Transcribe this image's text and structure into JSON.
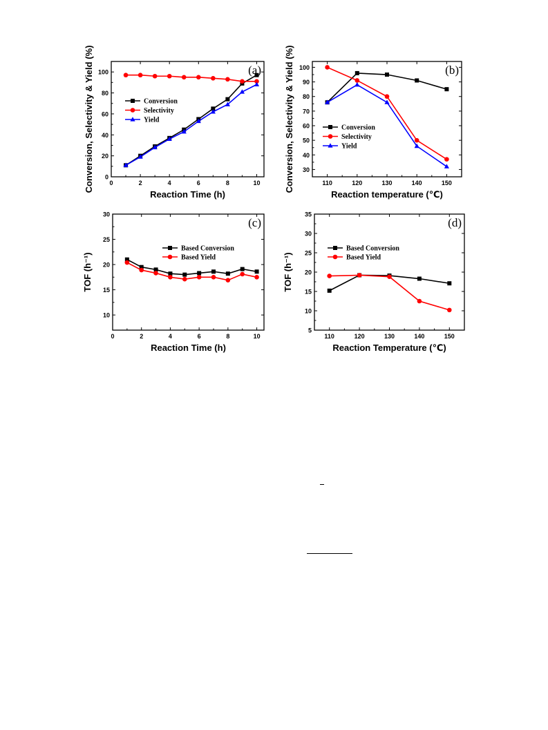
{
  "chart_data": [
    {
      "panel": "(a)",
      "type": "line",
      "xlabel": "Reaction Time (h)",
      "ylabel": "Conversion, Selectivity & Yield (%)",
      "xlim": [
        0,
        10.5
      ],
      "ylim": [
        0,
        110
      ],
      "xticks": [
        0,
        2,
        4,
        6,
        8,
        10
      ],
      "yticks": [
        0,
        20,
        40,
        60,
        80,
        100
      ],
      "legend_position": "middle-left",
      "x": [
        1,
        2,
        3,
        4,
        5,
        6,
        7,
        8,
        9,
        10
      ],
      "series": [
        {
          "name": "Conversion",
          "color": "#000000",
          "marker": "square",
          "values": [
            11,
            20,
            29,
            37,
            45,
            55,
            65,
            74,
            89,
            97
          ]
        },
        {
          "name": "Selectivity",
          "color": "#ff0000",
          "marker": "circle",
          "values": [
            97,
            97,
            96,
            96,
            95,
            95,
            94,
            93,
            91,
            91
          ]
        },
        {
          "name": "Yield",
          "color": "#0000ff",
          "marker": "triangle",
          "values": [
            11,
            19,
            28,
            36,
            43,
            53,
            62,
            69,
            81,
            88
          ]
        }
      ]
    },
    {
      "panel": "(b)",
      "type": "line",
      "xlabel": "Reaction temperature (℃)",
      "ylabel": "Conversion, Selectivity & Yield (%)",
      "xlim": [
        105,
        155
      ],
      "ylim": [
        25,
        104
      ],
      "xticks": [
        110,
        120,
        130,
        140,
        150
      ],
      "yticks": [
        30,
        40,
        50,
        60,
        70,
        80,
        90,
        100
      ],
      "legend_position": "middle-left",
      "x": [
        110,
        120,
        130,
        140,
        150
      ],
      "series": [
        {
          "name": "Conversion",
          "color": "#000000",
          "marker": "square",
          "values": [
            76,
            96,
            95,
            91,
            85
          ]
        },
        {
          "name": "Selectivity",
          "color": "#ff0000",
          "marker": "circle",
          "values": [
            100,
            91,
            80,
            50,
            37
          ]
        },
        {
          "name": "Yield",
          "color": "#0000ff",
          "marker": "triangle",
          "values": [
            76,
            88,
            76,
            46,
            32
          ]
        }
      ]
    },
    {
      "panel": "(c)",
      "type": "line",
      "xlabel": "Reaction Time (h)",
      "ylabel": "TOF (h⁻¹)",
      "xlim": [
        0,
        10.5
      ],
      "ylim": [
        7,
        30
      ],
      "xticks": [
        0,
        2,
        4,
        6,
        8,
        10
      ],
      "yticks": [
        10,
        15,
        20,
        25,
        30
      ],
      "legend_position": "top-right",
      "x": [
        1,
        2,
        3,
        4,
        5,
        6,
        7,
        8,
        9,
        10
      ],
      "series": [
        {
          "name": "Based Conversion",
          "color": "#000000",
          "marker": "square",
          "values": [
            21.0,
            19.5,
            19.0,
            18.2,
            18.0,
            18.3,
            18.6,
            18.2,
            19.1,
            18.6
          ]
        },
        {
          "name": "Based Yield",
          "color": "#ff0000",
          "marker": "circle",
          "values": [
            20.4,
            18.9,
            18.3,
            17.5,
            17.1,
            17.5,
            17.5,
            16.9,
            18.1,
            17.5
          ]
        }
      ]
    },
    {
      "panel": "(d)",
      "type": "line",
      "xlabel": "Reaction Temperature (℃)",
      "ylabel": "TOF (h⁻¹)",
      "xlim": [
        105,
        155
      ],
      "ylim": [
        5,
        35
      ],
      "xticks": [
        110,
        120,
        130,
        140,
        150
      ],
      "yticks": [
        5,
        10,
        15,
        20,
        25,
        30,
        35
      ],
      "legend_position": "top-right",
      "x": [
        110,
        120,
        130,
        140,
        150
      ],
      "series": [
        {
          "name": "Based Conversion",
          "color": "#000000",
          "marker": "square",
          "values": [
            15.2,
            19.2,
            19.1,
            18.3,
            17.1
          ]
        },
        {
          "name": "Based Yield",
          "color": "#ff0000",
          "marker": "circle",
          "values": [
            19.0,
            19.2,
            18.8,
            12.5,
            10.2
          ]
        }
      ]
    }
  ],
  "page_marks": {
    "short_dash": "–"
  }
}
